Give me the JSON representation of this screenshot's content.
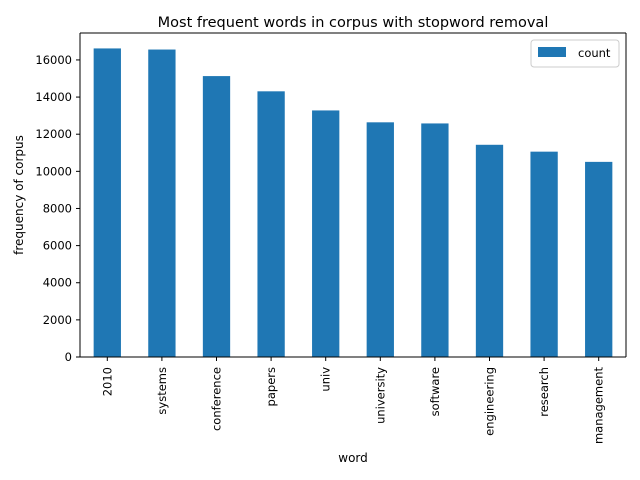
{
  "chart_data": {
    "type": "bar",
    "title": "Most frequent words in corpus with stopword removal",
    "xlabel": "word",
    "ylabel": "frequency of corpus",
    "categories": [
      "2010",
      "systems",
      "conference",
      "papers",
      "univ",
      "university",
      "software",
      "engineering",
      "research",
      "management"
    ],
    "series": [
      {
        "name": "count",
        "values": [
          16620,
          16560,
          15130,
          14310,
          13280,
          12640,
          12580,
          11430,
          11060,
          10510
        ]
      }
    ],
    "yticks": [
      0,
      2000,
      4000,
      6000,
      8000,
      10000,
      12000,
      14000,
      16000
    ],
    "ylim": [
      0,
      17451
    ],
    "grid": false,
    "legend_position": "top-right",
    "bar_color": "#1f77b4"
  }
}
